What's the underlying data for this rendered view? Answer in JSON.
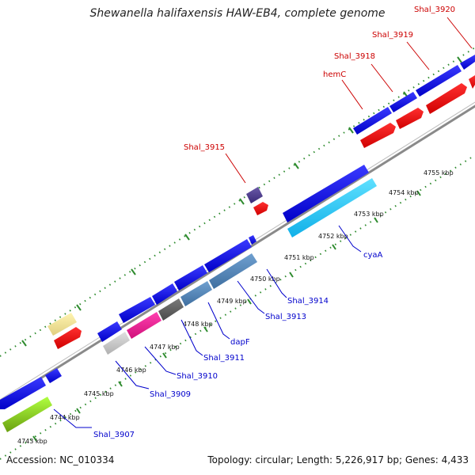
{
  "title": "Shewanella halifaxensis HAW-EB4, complete genome",
  "footer": {
    "accession": "Accession: NC_010334",
    "topology": "Topology: circular; Length: 5,226,917 bp; Genes: 4,433"
  },
  "colors": {
    "backbone": "#8a8a8a",
    "tick": "#2e8b2e",
    "forward_label": "#cc0000",
    "reverse_label": "#0000cc"
  },
  "scale_labels": [
    "4743 kbp",
    "4744 kbp",
    "4745 kbp",
    "4746 kbp",
    "4747 kbp",
    "4748 kbp",
    "4749 kbp",
    "4750 kbp",
    "4751 kbp",
    "4752 kbp",
    "4753 kbp",
    "4754 kbp",
    "4755 kbp"
  ],
  "forward_gene_labels": [
    "Shal_3915",
    "hemC",
    "Shal_3918",
    "Shal_3919",
    "Shal_3920"
  ],
  "reverse_gene_labels": [
    "Shal_3907",
    "Shal_3909",
    "Shal_3910",
    "Shal_3911",
    "dapF",
    "Shal_3913",
    "Shal_3914",
    "cyaA"
  ]
}
